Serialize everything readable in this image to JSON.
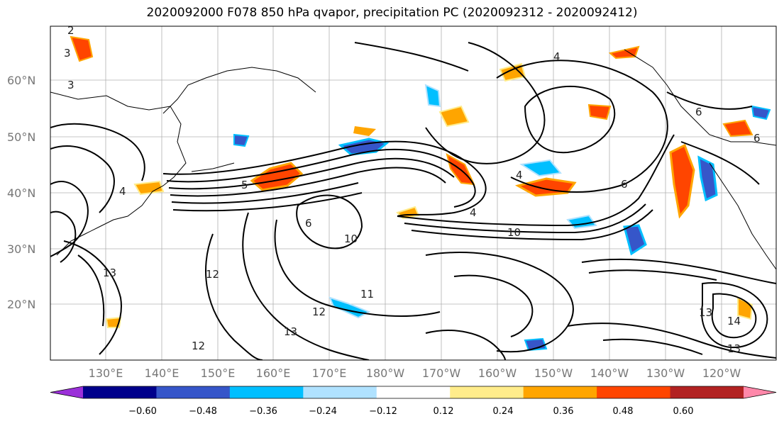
{
  "title": "2020092000 F078 850 hPa qvapor, precipitation PC (2020092312 - 2020092412)",
  "map": {
    "lat_labels": [
      "60°N",
      "50°N",
      "40°N",
      "30°N",
      "20°N"
    ],
    "lon_labels": [
      "130°E",
      "140°E",
      "150°E",
      "160°E",
      "170°E",
      "180°W",
      "170°W",
      "160°W",
      "150°W",
      "140°W",
      "130°W",
      "120°W"
    ],
    "contour_labels": [
      "2",
      "3",
      "3",
      "4",
      "4",
      "5",
      "6",
      "6",
      "6",
      "4",
      "10",
      "10",
      "11",
      "12",
      "12",
      "13",
      "13",
      "13",
      "14",
      "13",
      "12",
      "6",
      "4"
    ]
  },
  "colorbar": {
    "ticks": [
      "−0.60",
      "−0.48",
      "−0.36",
      "−0.24",
      "−0.12",
      "0.12",
      "0.24",
      "0.36",
      "0.48",
      "0.60"
    ],
    "colors": [
      "#9b30d9",
      "#00008b",
      "#3656c9",
      "#00bfff",
      "#b0e2ff",
      "#ffffff",
      "#ffec8b",
      "#ffa500",
      "#ff4500",
      "#b22222",
      "#ff88aa"
    ]
  }
}
